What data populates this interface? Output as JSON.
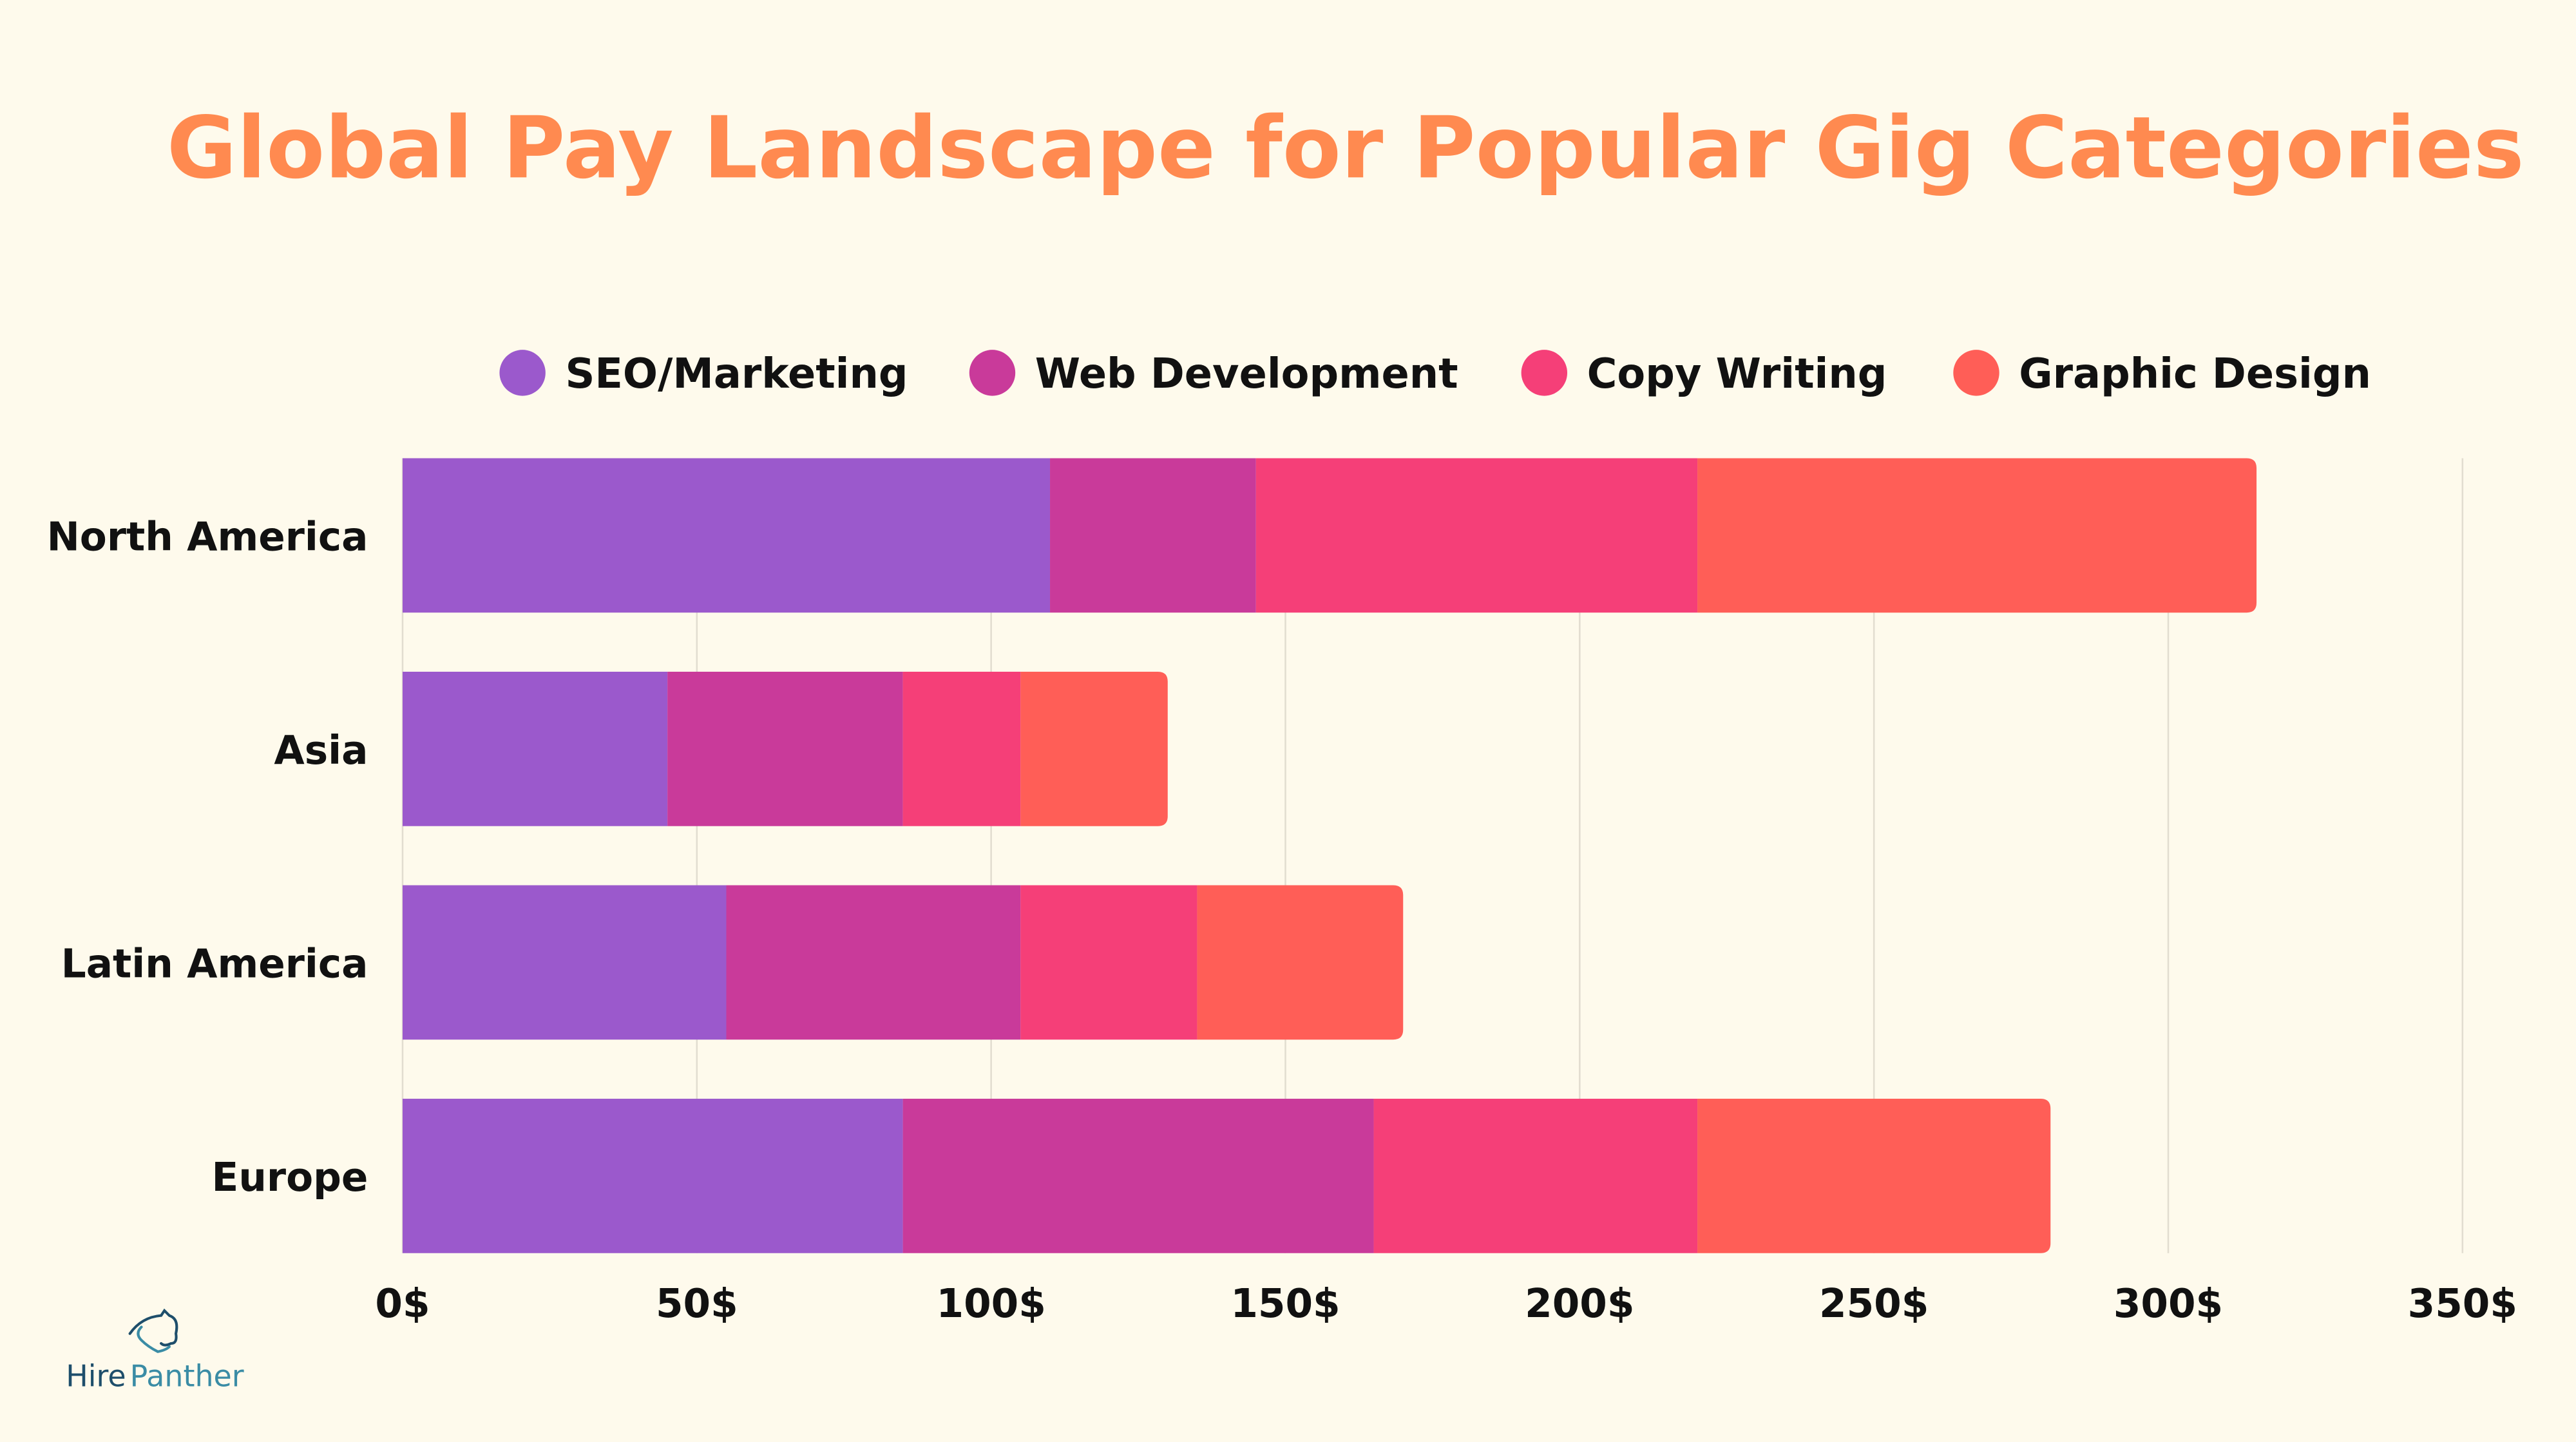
{
  "chart_data": {
    "type": "bar",
    "orientation": "horizontal",
    "stacked": true,
    "title": "Global Pay Landscape for Popular Gig Categories",
    "categories": [
      "North America",
      "Asia",
      "Latin America",
      "Europe"
    ],
    "series": [
      {
        "name": "SEO/Marketing",
        "color": "#9B59CC",
        "values": [
          110,
          45,
          55,
          85
        ]
      },
      {
        "name": "Web Development",
        "color": "#C93A9A",
        "values": [
          35,
          40,
          50,
          80
        ]
      },
      {
        "name": "Copy Writing",
        "color": "#F53F78",
        "values": [
          75,
          20,
          30,
          55
        ]
      },
      {
        "name": "Graphic Design",
        "color": "#FF5E57",
        "values": [
          95,
          25,
          35,
          60
        ]
      }
    ],
    "xlim": [
      0,
      350
    ],
    "x_ticks": [
      "0$",
      "50$",
      "100$",
      "150$",
      "200$",
      "250$",
      "300$",
      "350$"
    ],
    "x_tick_values": [
      0,
      50,
      100,
      150,
      200,
      250,
      300,
      350
    ],
    "grid": "vertical",
    "legend_position": "top",
    "xlabel": "",
    "ylabel": ""
  },
  "colors": {
    "background": "#FEFAEC",
    "title": "#FF8A50",
    "grid": "#E2DDD0",
    "logo_dark": "#1E4E6B",
    "logo_light": "#3A8CA5"
  },
  "logo": {
    "text_part1": "Hire",
    "text_part2": "Panther"
  }
}
